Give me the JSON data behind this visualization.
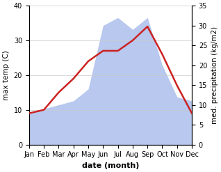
{
  "months": [
    "Jan",
    "Feb",
    "Mar",
    "Apr",
    "May",
    "Jun",
    "Jul",
    "Aug",
    "Sep",
    "Oct",
    "Nov",
    "Dec"
  ],
  "temp": [
    9,
    10,
    15,
    19,
    24,
    27,
    27,
    30,
    34,
    26,
    17,
    9
  ],
  "precip": [
    8,
    9,
    10,
    11,
    14,
    30,
    32,
    29,
    32,
    20,
    12,
    11
  ],
  "temp_color": "#cc2222",
  "precip_color": "#b8c8ee",
  "ylabel_left": "max temp (C)",
  "ylabel_right": "med. precipitation (kg/m2)",
  "xlabel": "date (month)",
  "ylim_left": [
    0,
    40
  ],
  "ylim_right": [
    0,
    35
  ],
  "yticks_left": [
    0,
    10,
    20,
    30,
    40
  ],
  "yticks_right": [
    0,
    5,
    10,
    15,
    20,
    25,
    30,
    35
  ],
  "temp_linewidth": 1.8,
  "xlabel_fontsize": 8,
  "ylabel_fontsize": 7.5,
  "tick_fontsize": 7
}
